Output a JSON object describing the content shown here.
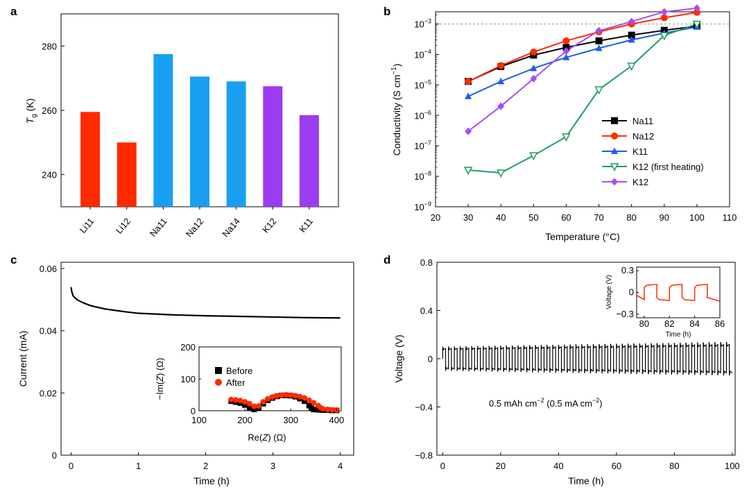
{
  "chart_data": [
    {
      "panel": "a",
      "type": "bar",
      "xlabel": "",
      "ylabel_main": "T",
      "ylabel_sub": "g",
      "ylabel_unit": " (K)",
      "ylim": [
        230,
        290
      ],
      "yticks": [
        240,
        260,
        280
      ],
      "categories": [
        "Li11",
        "Li12",
        "Na11",
        "Na12",
        "Na14",
        "K12",
        "K11"
      ],
      "values": [
        259.5,
        250,
        277.5,
        270.5,
        269,
        267.5,
        258.5
      ],
      "colors": [
        "#ff2a00",
        "#ff2a00",
        "#1a9ff0",
        "#1a9ff0",
        "#1a9ff0",
        "#9b3cf0",
        "#9b3cf0"
      ]
    },
    {
      "panel": "b",
      "type": "line",
      "scale_y": "log",
      "xlabel": "Temperature (°C)",
      "ylabel": "Conductivity (S cm",
      "ylabel_exp": "−1",
      "ylabel_close": ")",
      "xlim": [
        20,
        110
      ],
      "xticks": [
        20,
        30,
        40,
        50,
        60,
        70,
        80,
        90,
        100,
        110
      ],
      "ylim_exp": [
        -9,
        -2.6
      ],
      "yticks_exp": [
        -9,
        -8,
        -7,
        -6,
        -5,
        -4,
        -3
      ],
      "ytick_base": "10",
      "ytick_exps": [
        "−9",
        "−8",
        "−7",
        "−6",
        "−5",
        "−4",
        "−3"
      ],
      "reference_line": 0.001,
      "x": [
        30,
        40,
        50,
        60,
        70,
        80,
        90,
        100
      ],
      "series": [
        {
          "name": "Na11",
          "color": "#000000",
          "marker": "square",
          "values": [
            1.3e-05,
            4e-05,
            9.5e-05,
            0.00017,
            0.00028,
            0.00043,
            0.00062,
            0.00085
          ]
        },
        {
          "name": "Na12",
          "color": "#ff2a00",
          "marker": "circle",
          "values": [
            1.3e-05,
            4.3e-05,
            0.00012,
            0.00028,
            0.00055,
            0.001,
            0.0016,
            0.0024
          ]
        },
        {
          "name": "K11",
          "color": "#1a5cf0",
          "marker": "triangle",
          "values": [
            4.2e-06,
            1.3e-05,
            3.5e-05,
            8e-05,
            0.00016,
            0.0003,
            0.0005,
            0.0008
          ]
        },
        {
          "name": "K12 (first heating)",
          "color": "#1e9e5a",
          "marker": "triangle-down-open",
          "values": [
            1.6e-08,
            1.3e-08,
            4.8e-08,
            2e-07,
            7e-06,
            4.2e-05,
            0.00042,
            0.001
          ]
        },
        {
          "name": "K12",
          "color": "#a64df5",
          "marker": "diamond",
          "values": [
            3e-07,
            2e-06,
            1.6e-05,
            0.00013,
            0.0006,
            0.0012,
            0.0025,
            0.0033
          ]
        }
      ]
    },
    {
      "panel": "c",
      "type": "line",
      "xlabel": "Time (h)",
      "ylabel": "Current (mA)",
      "xlim": [
        -0.15,
        4.2
      ],
      "xticks": [
        0,
        1,
        2,
        3,
        4
      ],
      "ylim": [
        0,
        0.062
      ],
      "yticks": [
        "0",
        "0.02",
        "0.04",
        "0.06"
      ],
      "series": [
        {
          "name": "Current",
          "color": "#000000",
          "x": [
            0,
            0.01,
            0.03,
            0.06,
            0.1,
            0.2,
            0.3,
            0.5,
            0.8,
            1.0,
            1.5,
            2.0,
            2.5,
            3.0,
            3.5,
            4.0
          ],
          "values": [
            0.054,
            0.0525,
            0.0512,
            0.0505,
            0.0498,
            0.0488,
            0.048,
            0.047,
            0.0461,
            0.0456,
            0.0451,
            0.0448,
            0.0446,
            0.0444,
            0.0442,
            0.0441
          ]
        }
      ],
      "inset": {
        "type": "scatter",
        "xlabel_pre": "Re(",
        "xlabel_var": "Z",
        "xlabel_post": ") (Ω)",
        "ylabel_pre": "−Im(",
        "ylabel_var": "Z",
        "ylabel_post": ") (Ω)",
        "xlim": [
          100,
          410
        ],
        "xticks": [
          100,
          200,
          300,
          400
        ],
        "ylim": [
          0,
          200
        ],
        "yticks": [
          0,
          100,
          200
        ],
        "series": [
          {
            "name": "Before",
            "color": "#000000",
            "marker": "square",
            "x": [
              170,
              180,
              190,
              200,
              210,
              220,
              230,
              240,
              250,
              260,
              270,
              280,
              290,
              300,
              310,
              320,
              330,
              340,
              345,
              350,
              360,
              370,
              380,
              390,
              400
            ],
            "values": [
              30,
              27,
              24,
              18,
              10,
              4,
              8,
              22,
              33,
              40,
              45,
              48,
              48,
              47,
              44,
              38,
              30,
              16,
              8,
              4,
              3,
              2,
              2,
              1,
              1
            ]
          },
          {
            "name": "After",
            "color": "#ff2a00",
            "marker": "circle",
            "x": [
              170,
              180,
              190,
              200,
              210,
              220,
              230,
              240,
              250,
              260,
              270,
              280,
              290,
              300,
              310,
              320,
              330,
              340,
              350,
              360,
              365,
              370,
              380,
              390,
              400
            ],
            "values": [
              35,
              34,
              32,
              28,
              22,
              14,
              15,
              28,
              37,
              43,
              47,
              49,
              50,
              49,
              47,
              44,
              40,
              33,
              25,
              16,
              10,
              6,
              4,
              3,
              2
            ]
          }
        ]
      }
    },
    {
      "panel": "d",
      "type": "line",
      "xlabel": "Time (h)",
      "ylabel": "Voltage (V)",
      "xlim": [
        -2,
        101
      ],
      "xticks": [
        0,
        20,
        40,
        60,
        80,
        100
      ],
      "ylim": [
        -0.8,
        0.8
      ],
      "yticks": [
        "−0.8",
        "−0.4",
        "0",
        "0.4",
        "0.8"
      ],
      "annotation_main": "0.5 mAh cm",
      "annotation_exp1": "−2",
      "annotation_mid": " (0.5 mA cm",
      "annotation_exp2": "−2",
      "annotation_close": ")",
      "cycle_period_h": 2,
      "amplitude_start": 0.1,
      "amplitude_end": 0.14,
      "inset": {
        "xlabel": "Time (h)",
        "ylabel": "Voltage (V)",
        "xlim": [
          79.4,
          86
        ],
        "xticks": [
          80,
          82,
          84,
          86
        ],
        "ylim": [
          -0.35,
          0.35
        ],
        "yticks": [
          "0.3",
          "0",
          "−0.3"
        ],
        "color": "#ff2a00",
        "x": [
          79.4,
          80.0,
          80.0,
          80.2,
          80.95,
          81.0,
          81.0,
          81.2,
          81.95,
          82.0,
          82.0,
          82.2,
          82.95,
          83.0,
          83.0,
          83.2,
          83.95,
          84.0,
          84.0,
          84.2,
          84.95,
          85.0,
          85.0,
          85.2,
          85.95
        ],
        "values": [
          -0.04,
          -0.1,
          0.07,
          0.1,
          0.11,
          0.11,
          -0.07,
          -0.1,
          -0.11,
          -0.11,
          0.07,
          0.1,
          0.11,
          0.11,
          -0.07,
          -0.1,
          -0.11,
          -0.11,
          0.07,
          0.1,
          0.11,
          0.11,
          -0.07,
          -0.08,
          -0.12
        ]
      }
    }
  ]
}
